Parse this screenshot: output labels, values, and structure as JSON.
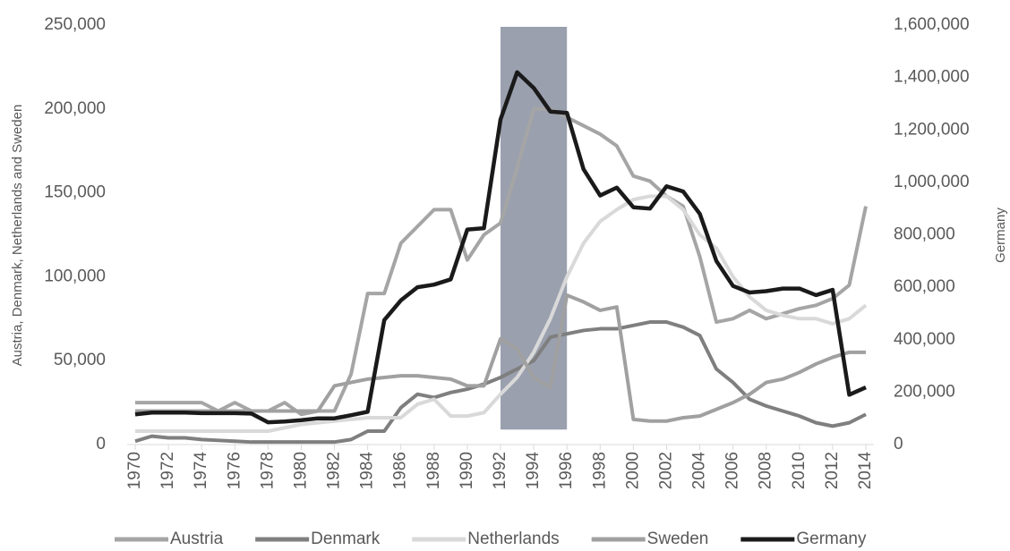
{
  "chart_data": {
    "type": "line",
    "x": [
      1970,
      1971,
      1972,
      1973,
      1974,
      1975,
      1976,
      1977,
      1978,
      1979,
      1980,
      1981,
      1982,
      1983,
      1984,
      1985,
      1986,
      1987,
      1988,
      1989,
      1990,
      1991,
      1992,
      1993,
      1994,
      1995,
      1996,
      1997,
      1998,
      1999,
      2000,
      2001,
      2002,
      2003,
      2004,
      2005,
      2006,
      2007,
      2008,
      2009,
      2010,
      2011,
      2012,
      2013,
      2014
    ],
    "xlim": [
      1970,
      2014
    ],
    "xticks": [
      1970,
      1972,
      1974,
      1976,
      1978,
      1980,
      1982,
      1984,
      1986,
      1988,
      1990,
      1992,
      1994,
      1996,
      1998,
      2000,
      2002,
      2004,
      2006,
      2008,
      2010,
      2012,
      2014
    ],
    "ylabel": "Austria, Denmark, Netherlands and Sweden",
    "y2label": "Germany",
    "ylim": [
      0,
      250000
    ],
    "yticks": [
      0,
      {
        "value": 50000,
        "label": "50,000"
      },
      {
        "value": 100000,
        "label": "100,000"
      },
      {
        "value": 150000,
        "label": "150,000"
      },
      {
        "value": 200000,
        "label": "200,000"
      },
      {
        "value": 250000,
        "label": "250,000"
      }
    ],
    "y2lim": [
      0,
      1600000
    ],
    "y2ticks": [
      0,
      {
        "value": 200000,
        "label": "200,000"
      },
      {
        "value": 400000,
        "label": "400,000"
      },
      {
        "value": 600000,
        "label": "600,000"
      },
      {
        "value": 800000,
        "label": "800,000"
      },
      {
        "value": 1000000,
        "label": "1,000,000"
      },
      {
        "value": 1200000,
        "label": "1,200,000"
      },
      {
        "value": 1400000,
        "label": "1,400,000"
      },
      {
        "value": 1600000,
        "label": "1,600,000"
      }
    ],
    "highlight": {
      "x": [
        1992,
        1996
      ],
      "color": "#9aa0ae"
    },
    "legend": "bottom",
    "series": [
      {
        "name": "Austria",
        "color": "#a5a5a5",
        "values": [
          25000,
          25000,
          25000,
          25000,
          25000,
          20000,
          25000,
          20000,
          20000,
          25000,
          18000,
          20000,
          20000,
          42000,
          90000,
          90000,
          120000,
          130000,
          140000,
          140000,
          110000,
          125000,
          132000,
          165000,
          200000,
          200000,
          195000,
          190000,
          185000,
          178000,
          160000,
          157000,
          148000,
          142000,
          112000,
          73000,
          75000,
          80000,
          75000,
          78000,
          81000,
          83000,
          87000,
          95000,
          142000
        ]
      },
      {
        "name": "Denmark",
        "color": "#7f7f7f",
        "values": [
          2000,
          5000,
          4000,
          4000,
          3000,
          2500,
          2000,
          1500,
          1500,
          1500,
          1500,
          1500,
          1500,
          3000,
          8000,
          8000,
          22000,
          30000,
          28000,
          31000,
          33000,
          36000,
          40000,
          45000,
          50000,
          64000,
          66000,
          68000,
          69000,
          69000,
          71000,
          73000,
          73000,
          70000,
          65000,
          45000,
          37000,
          27000,
          23000,
          20000,
          17000,
          13000,
          11000,
          13000,
          18000
        ]
      },
      {
        "name": "Netherlands",
        "color": "#d9d9d9",
        "values": [
          8000,
          8000,
          8000,
          8000,
          8000,
          8000,
          8000,
          8000,
          8000,
          10000,
          12000,
          13000,
          14000,
          15000,
          16000,
          16000,
          16000,
          24000,
          27000,
          17000,
          17000,
          19000,
          30000,
          40000,
          55000,
          75000,
          100000,
          120000,
          133000,
          140000,
          146000,
          148000,
          148000,
          140000,
          125000,
          117000,
          100000,
          88000,
          80000,
          77000,
          75000,
          75000,
          72000,
          75000,
          83000
        ]
      },
      {
        "name": "Sweden",
        "color": "#a0a0a0",
        "values": [
          20000,
          20000,
          20000,
          20000,
          20000,
          20000,
          20000,
          20000,
          20000,
          20000,
          20000,
          20000,
          35000,
          37000,
          39000,
          40000,
          41000,
          41000,
          40000,
          39000,
          35000,
          35000,
          63000,
          57000,
          40000,
          34000,
          89000,
          85000,
          80000,
          82000,
          15000,
          14000,
          14000,
          16000,
          17000,
          21000,
          25000,
          30000,
          37000,
          39000,
          43000,
          48000,
          52000,
          55000,
          55000
        ]
      },
      {
        "name": "Germany",
        "color": "#1a1a1a",
        "axis": "y2",
        "values": [
          115000,
          122000,
          122000,
          122000,
          120000,
          120000,
          120000,
          118000,
          85000,
          88000,
          93000,
          100000,
          100000,
          112000,
          125000,
          475000,
          550000,
          600000,
          610000,
          630000,
          820000,
          825000,
          1240000,
          1420000,
          1360000,
          1270000,
          1265000,
          1050000,
          950000,
          980000,
          905000,
          900000,
          985000,
          965000,
          880000,
          700000,
          605000,
          580000,
          585000,
          595000,
          595000,
          570000,
          590000,
          190000,
          218000
        ]
      }
    ]
  }
}
